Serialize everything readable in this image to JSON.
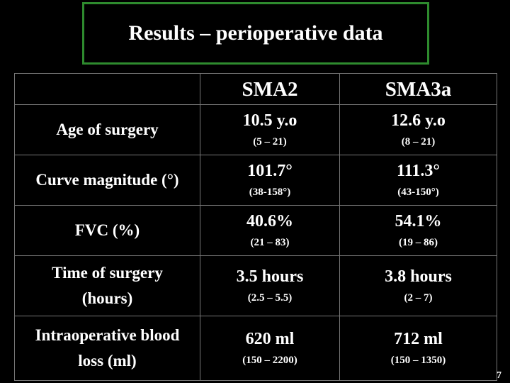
{
  "slide": {
    "title": "Results – perioperative data",
    "page_number": "7"
  },
  "table": {
    "columns": [
      "",
      "SMA2",
      "SMA3a"
    ],
    "rows": [
      {
        "label": "Age of surgery",
        "sma2": {
          "value": "10.5 y.o",
          "range": "(5 – 21)"
        },
        "sma3a": {
          "value": "12.6 y.o",
          "range": "(8 – 21)"
        }
      },
      {
        "label": "Curve magnitude (°)",
        "sma2": {
          "value": "101.7°",
          "range": "(38-158°)"
        },
        "sma3a": {
          "value": "111.3°",
          "range": "(43-150°)"
        }
      },
      {
        "label": "FVC (%)",
        "sma2": {
          "value": "40.6%",
          "range": "(21 – 83)"
        },
        "sma3a": {
          "value": "54.1%",
          "range": "(19 – 86)"
        }
      },
      {
        "label_lines": [
          "Time of surgery",
          "(hours)"
        ],
        "sma2": {
          "value": "3.5 hours",
          "range": "(2.5 – 5.5)"
        },
        "sma3a": {
          "value": "3.8 hours",
          "range": "(2 – 7)"
        }
      },
      {
        "label_lines": [
          "Intraoperative blood",
          "loss (ml)"
        ],
        "sma2": {
          "value": "620 ml",
          "range": "(150 – 2200)"
        },
        "sma3a": {
          "value": "712 ml",
          "range": "(150 – 1350)"
        }
      }
    ]
  }
}
